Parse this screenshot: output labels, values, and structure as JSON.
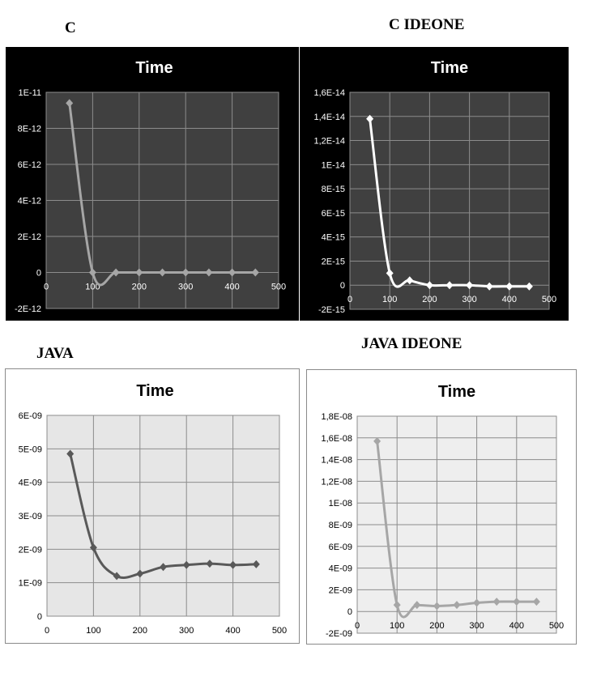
{
  "headings": {
    "c": "C",
    "c_ideone": "C IDEONE",
    "java": "JAVA",
    "java_ideone": "JAVA IDEONE"
  },
  "chart_data": [
    {
      "id": "c",
      "type": "line",
      "theme": "dark",
      "title": "Time",
      "x": [
        50,
        100,
        150,
        200,
        250,
        300,
        350,
        400,
        450
      ],
      "series": [
        {
          "values": [
            9.4e-12,
            0,
            0,
            0,
            0,
            0,
            0,
            0,
            0
          ],
          "color": "#a6a6a6"
        }
      ],
      "xlim": [
        0,
        500
      ],
      "ylim": [
        -2e-12,
        1e-11
      ],
      "xticks": [
        "0",
        "100",
        "200",
        "300",
        "400",
        "500"
      ],
      "yticks": [
        "-2E-12",
        "0",
        "2E-12",
        "4E-12",
        "6E-12",
        "8E-12",
        "1E-11"
      ],
      "grid": true,
      "smooth": true
    },
    {
      "id": "c_ideone",
      "type": "line",
      "theme": "dark",
      "title": "Time",
      "x": [
        50,
        100,
        150,
        200,
        250,
        300,
        350,
        400,
        450
      ],
      "series": [
        {
          "values": [
            1.38e-14,
            1e-15,
            4e-16,
            0,
            0,
            0,
            -1e-16,
            -1e-16,
            -1e-16
          ],
          "color": "#ffffff"
        }
      ],
      "xlim": [
        0,
        500
      ],
      "ylim": [
        -2e-15,
        1.6e-14
      ],
      "xticks": [
        "0",
        "100",
        "200",
        "300",
        "400",
        "500"
      ],
      "yticks": [
        "-2E-15",
        "0",
        "2E-15",
        "4E-15",
        "6E-15",
        "8E-15",
        "1E-14",
        "1,2E-14",
        "1,4E-14",
        "1,6E-14"
      ],
      "grid": true,
      "smooth": true
    },
    {
      "id": "java",
      "type": "line",
      "theme": "light",
      "title": "Time",
      "x": [
        50,
        100,
        150,
        200,
        250,
        300,
        350,
        400,
        450
      ],
      "series": [
        {
          "values": [
            4.85e-09,
            2.05e-09,
            1.2e-09,
            1.27e-09,
            1.47e-09,
            1.53e-09,
            1.57e-09,
            1.53e-09,
            1.55e-09
          ],
          "color": "#595959"
        }
      ],
      "xlim": [
        0,
        500
      ],
      "ylim": [
        0,
        6e-09
      ],
      "xticks": [
        "0",
        "100",
        "200",
        "300",
        "400",
        "500"
      ],
      "yticks": [
        "0",
        "1E-09",
        "2E-09",
        "3E-09",
        "4E-09",
        "5E-09",
        "6E-09"
      ],
      "grid": true,
      "smooth": true
    },
    {
      "id": "java_ideone",
      "type": "line",
      "theme": "light",
      "title": "Time",
      "x": [
        50,
        100,
        150,
        200,
        250,
        300,
        350,
        400,
        450
      ],
      "series": [
        {
          "values": [
            1.57e-08,
            6e-10,
            6e-10,
            5e-10,
            6e-10,
            8e-10,
            9e-10,
            9e-10,
            9e-10
          ],
          "color": "#a6a6a6"
        }
      ],
      "xlim": [
        0,
        500
      ],
      "ylim": [
        -2e-09,
        1.8e-08
      ],
      "xticks": [
        "0",
        "100",
        "200",
        "300",
        "400",
        "500"
      ],
      "yticks": [
        "-2E-09",
        "0",
        "2E-09",
        "4E-09",
        "6E-09",
        "8E-09",
        "1E-08",
        "1,2E-08",
        "1,4E-08",
        "1,6E-08",
        "1,8E-08"
      ],
      "grid": true,
      "smooth": true
    }
  ]
}
